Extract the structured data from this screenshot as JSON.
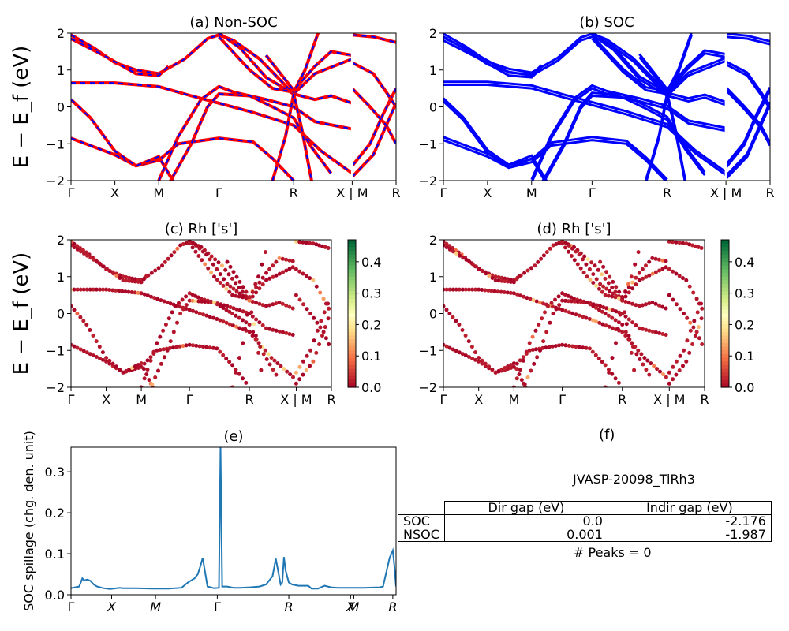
{
  "chart_data": [
    {
      "panel": "a",
      "type": "line",
      "title": "(a) Non-SOC",
      "ylabel": "E − E_f (eV)",
      "ylim": [
        -2,
        2
      ],
      "yticks": [
        "2",
        "1",
        "0",
        "−1",
        "−2"
      ],
      "xticks": [
        "Γ",
        "X",
        "M",
        "Γ",
        "R",
        "X | M",
        "R"
      ],
      "series": [
        {
          "color": "#ff0000"
        },
        {
          "color": "#0000ff",
          "dash": true
        }
      ]
    },
    {
      "panel": "b",
      "type": "line",
      "title": "(b) SOC",
      "ylim": [
        -2,
        2
      ],
      "yticks": [
        "2",
        "1",
        "0",
        "−1",
        "−2"
      ],
      "xticks": [
        "Γ",
        "X",
        "M",
        "Γ",
        "R",
        "X | M",
        "R"
      ],
      "series": [
        {
          "color": "#0000ff"
        }
      ]
    },
    {
      "panel": "c",
      "type": "scatter",
      "title": "(c)  Rh ['s']",
      "ylabel": "E − E_f (eV)",
      "ylim": [
        -2,
        2
      ],
      "yticks": [
        "2",
        "1",
        "0",
        "−1",
        "−2"
      ],
      "xticks": [
        "Γ",
        "X",
        "M",
        "Γ",
        "R",
        "X | M",
        "R"
      ],
      "colorbar": {
        "ticks": [
          "0.4",
          "0.3",
          "0.2",
          "0.1",
          "0.0"
        ],
        "range": [
          0,
          0.47
        ]
      }
    },
    {
      "panel": "d",
      "type": "scatter",
      "title": "(d) Rh ['s']",
      "ylim": [
        -2,
        2
      ],
      "yticks": [
        "2",
        "1",
        "0",
        "−1",
        "−2"
      ],
      "xticks": [
        "Γ",
        "X",
        "M",
        "Γ",
        "R",
        "X | M",
        "R"
      ],
      "colorbar": {
        "ticks": [
          "0.4",
          "0.3",
          "0.2",
          "0.1",
          "0.0"
        ],
        "range": [
          0,
          0.47
        ]
      }
    },
    {
      "panel": "e",
      "type": "line",
      "title": "(e)",
      "ylabel": "SOC spillage (chg. den. unit)",
      "ylim": [
        0,
        0.36
      ],
      "yticks": [
        "0.3",
        "0.2",
        "0.1",
        "0.0"
      ],
      "xticks": [
        "Γ",
        "X",
        "M",
        "Γ",
        "R",
        "X",
        "M",
        "R"
      ],
      "series": [
        {
          "color": "#1f77b4",
          "x": [
            0,
            0.025,
            0.035,
            0.04,
            0.05,
            0.06,
            0.07,
            0.08,
            0.1,
            0.12,
            0.15,
            0.16,
            0.17,
            0.2,
            0.25,
            0.3,
            0.34,
            0.36,
            0.37,
            0.38,
            0.39,
            0.4,
            0.405,
            0.42,
            0.44,
            0.455,
            0.46,
            0.465,
            0.48,
            0.5,
            0.52,
            0.55,
            0.58,
            0.6,
            0.62,
            0.63,
            0.645,
            0.65,
            0.655,
            0.66,
            0.67,
            0.68,
            0.7,
            0.73,
            0.74,
            0.76,
            0.78,
            0.8,
            0.82,
            0.85,
            0.9,
            0.95,
            0.96,
            0.98,
            0.99,
            0.995,
            1.0
          ],
          "y": [
            0.016,
            0.02,
            0.04,
            0.035,
            0.037,
            0.034,
            0.025,
            0.02,
            0.016,
            0.014,
            0.017,
            0.016,
            0.016,
            0.016,
            0.015,
            0.015,
            0.017,
            0.03,
            0.035,
            0.04,
            0.05,
            0.075,
            0.09,
            0.02,
            0.016,
            0.017,
            0.36,
            0.02,
            0.02,
            0.017,
            0.017,
            0.018,
            0.02,
            0.025,
            0.045,
            0.088,
            0.025,
            0.03,
            0.092,
            0.06,
            0.03,
            0.025,
            0.022,
            0.022,
            0.015,
            0.015,
            0.022,
            0.018,
            0.017,
            0.017,
            0.017,
            0.018,
            0.02,
            0.09,
            0.108,
            0.07,
            0.02
          ]
        }
      ]
    }
  ],
  "panel_f": {
    "title": "(f)",
    "name": "JVASP-20098_TiRh3",
    "table": {
      "headers": [
        "Dir gap (eV)",
        "Indir gap (eV)"
      ],
      "rows": [
        {
          "label": "SOC",
          "dir": "0.0",
          "indir": "-2.176"
        },
        {
          "label": "NSOC",
          "dir": "0.001",
          "indir": "-1.987"
        }
      ]
    },
    "peaks": "# Peaks = 0"
  }
}
